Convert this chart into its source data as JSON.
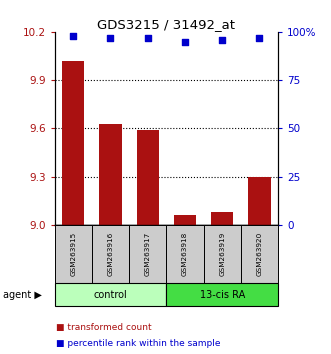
{
  "title": "GDS3215 / 31492_at",
  "samples": [
    "GSM263915",
    "GSM263916",
    "GSM263917",
    "GSM263918",
    "GSM263919",
    "GSM263920"
  ],
  "bar_values": [
    10.02,
    9.63,
    9.59,
    9.06,
    9.08,
    9.3
  ],
  "percentile_values": [
    98,
    97,
    97,
    95,
    96,
    97
  ],
  "bar_color": "#aa1111",
  "percentile_color": "#0000cc",
  "ylim_left": [
    9.0,
    10.2
  ],
  "ylim_right": [
    0,
    100
  ],
  "yticks_left": [
    9.0,
    9.3,
    9.6,
    9.9,
    10.2
  ],
  "yticks_right": [
    0,
    25,
    50,
    75,
    100
  ],
  "groups": [
    {
      "label": "control",
      "indices": [
        0,
        1,
        2
      ],
      "color": "#bbffbb"
    },
    {
      "label": "13-cis RA",
      "indices": [
        3,
        4,
        5
      ],
      "color": "#44dd44"
    }
  ],
  "agent_label": "agent",
  "legend_items": [
    {
      "label": "transformed count",
      "color": "#aa1111"
    },
    {
      "label": "percentile rank within the sample",
      "color": "#0000cc"
    }
  ],
  "sample_box_color": "#cccccc",
  "bar_base": 9.0,
  "bar_width": 0.6
}
